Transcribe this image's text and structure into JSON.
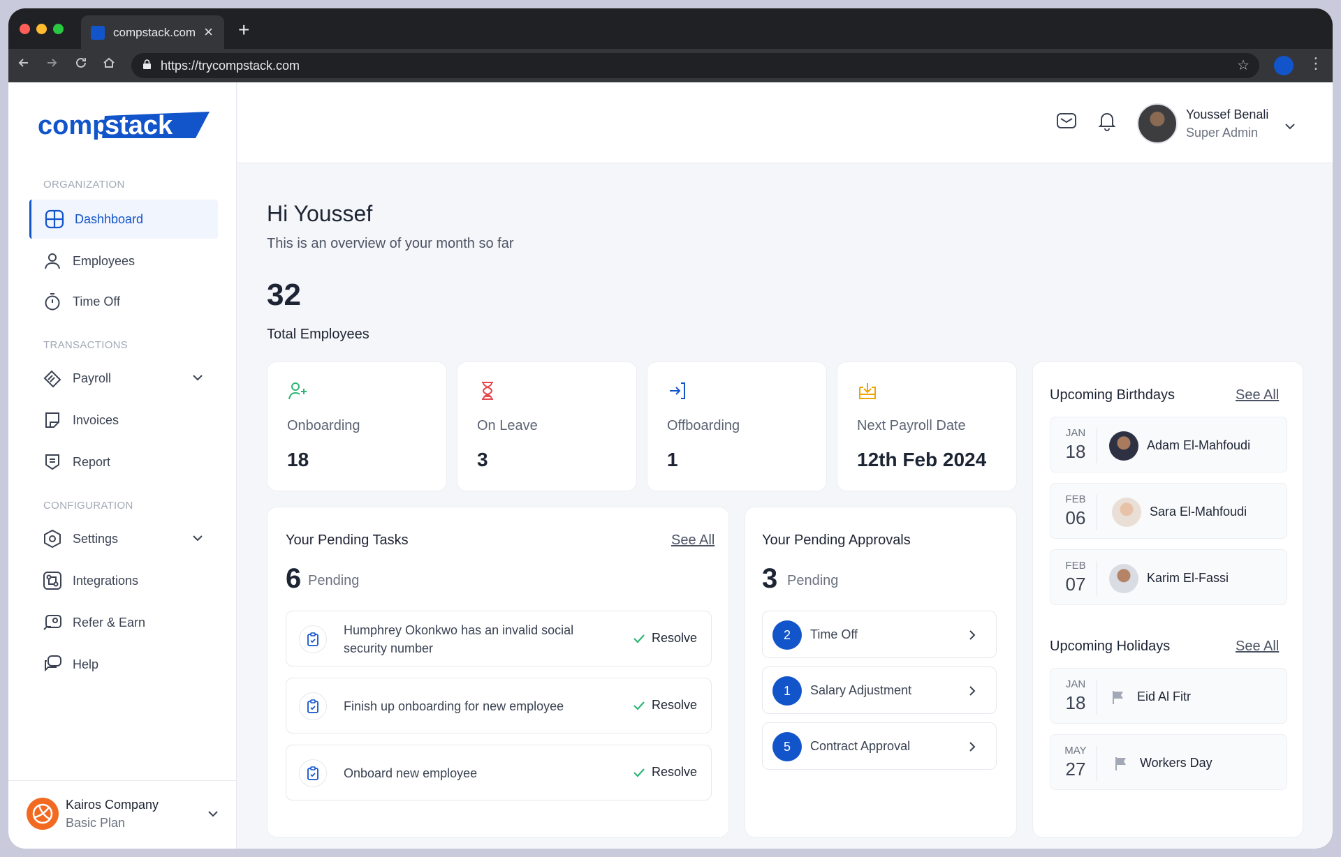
{
  "browser": {
    "tab_title": "compstack.com",
    "url": "https://trycompstack.com"
  },
  "sidebar": {
    "logo_text": "compstack",
    "sections": {
      "organization": "ORGANIZATION",
      "transactions": "TRANSACTIONS",
      "configuration": "CONFIGURATION"
    },
    "items": [
      {
        "label": "Dashhboard",
        "icon": "dashboard-icon",
        "active": true
      },
      {
        "label": "Employees",
        "icon": "user-icon"
      },
      {
        "label": "Time Off",
        "icon": "stopwatch-icon"
      },
      {
        "label": "Payroll",
        "icon": "payroll-icon",
        "expandable": true
      },
      {
        "label": "Invoices",
        "icon": "invoice-icon"
      },
      {
        "label": "Report",
        "icon": "report-icon"
      },
      {
        "label": "Settings",
        "icon": "settings-icon",
        "expandable": true
      },
      {
        "label": "Integrations",
        "icon": "integrations-icon"
      },
      {
        "label": "Refer & Earn",
        "icon": "refer-icon"
      },
      {
        "label": "Help",
        "icon": "help-icon"
      }
    ],
    "company": {
      "name": "Kairos Company",
      "plan": "Basic Plan"
    }
  },
  "header": {
    "user_name": "Youssef Benali",
    "user_role": "Super Admin"
  },
  "overview": {
    "greeting": "Hi Youssef",
    "subtitle": "This is an overview of your month so far",
    "total_employees": "32",
    "total_employees_label": "Total Employees"
  },
  "stats": [
    {
      "label": "Onboarding",
      "value": "18",
      "icon": "user-plus-icon",
      "color": "#2bb673"
    },
    {
      "label": "On Leave",
      "value": "3",
      "icon": "hourglass-icon",
      "color": "#e5484d"
    },
    {
      "label": "Offboarding",
      "value": "1",
      "icon": "sign-in-icon",
      "color": "#1254c9"
    },
    {
      "label": "Next Payroll Date",
      "value": "12th Feb 2024",
      "icon": "payroll-download-icon",
      "color": "#f0a500"
    }
  ],
  "tasks": {
    "title": "Your Pending Tasks",
    "see_all": "See All",
    "count": "6",
    "count_label": "Pending",
    "resolve_label": "Resolve",
    "items": [
      "Humphrey Okonkwo has an invalid social security number",
      "Finish up onboarding for new employee",
      "Onboard new employee"
    ]
  },
  "approvals": {
    "title": "Your Pending Approvals",
    "count": "3",
    "count_label": "Pending",
    "items": [
      {
        "count": "2",
        "label": "Time Off"
      },
      {
        "count": "1",
        "label": "Salary Adjustment"
      },
      {
        "count": "5",
        "label": "Contract Approval"
      }
    ]
  },
  "birthdays": {
    "title": "Upcoming Birthdays",
    "see_all": "See All",
    "items": [
      {
        "month": "JAN",
        "day": "18",
        "name": "Adam El-Mahfoudi"
      },
      {
        "month": "FEB",
        "day": "06",
        "name": "Sara El-Mahfoudi"
      },
      {
        "month": "FEB",
        "day": "07",
        "name": "Karim El-Fassi"
      }
    ]
  },
  "holidays": {
    "title": "Upcoming Holidays",
    "see_all": "See All",
    "items": [
      {
        "month": "JAN",
        "day": "18",
        "name": "Eid Al Fitr"
      },
      {
        "month": "MAY",
        "day": "27",
        "name": "Workers Day"
      }
    ]
  },
  "colors": {
    "brand": "#1254c9",
    "accent_orange": "#f26a21"
  }
}
